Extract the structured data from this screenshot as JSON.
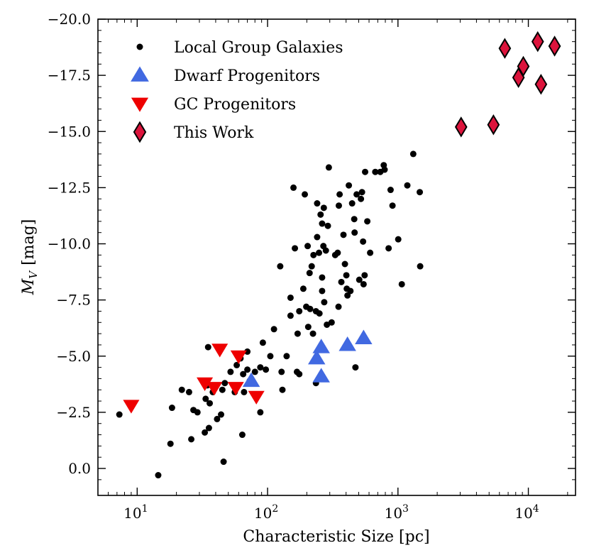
{
  "chart_data": {
    "type": "scatter",
    "xlabel": "Characteristic Size [pc]",
    "ylabel_main": "M",
    "ylabel_sub": "V",
    "ylabel_unit": "[mag]",
    "x_scale": "log",
    "y_inverted": true,
    "xlim": [
      5,
      23000
    ],
    "ylim": [
      1.2,
      -20.0
    ],
    "x_ticks": [
      {
        "value": 10,
        "base": "10",
        "exp": "1"
      },
      {
        "value": 100,
        "base": "10",
        "exp": "2"
      },
      {
        "value": 1000,
        "base": "10",
        "exp": "3"
      },
      {
        "value": 10000,
        "base": "10",
        "exp": "4"
      }
    ],
    "y_ticks": [
      {
        "value": 0.0,
        "label": "0.0"
      },
      {
        "value": -2.5,
        "label": "−2.5"
      },
      {
        "value": -5.0,
        "label": "−5.0"
      },
      {
        "value": -7.5,
        "label": "−7.5"
      },
      {
        "value": -10.0,
        "label": "−10.0"
      },
      {
        "value": -12.5,
        "label": "−12.5"
      },
      {
        "value": -15.0,
        "label": "−15.0"
      },
      {
        "value": -17.5,
        "label": "−17.5"
      },
      {
        "value": -20.0,
        "label": "−20.0"
      }
    ],
    "legend_position": "top-left",
    "grid": false,
    "series": [
      {
        "name": "Local Group Galaxies",
        "marker": "circle",
        "color": "#000000",
        "points": [
          [
            7.3,
            -2.4
          ],
          [
            14.5,
            0.3
          ],
          [
            18,
            -1.1
          ],
          [
            18.5,
            -2.7
          ],
          [
            22,
            -3.5
          ],
          [
            25,
            -3.4
          ],
          [
            26,
            -1.3
          ],
          [
            27,
            -2.6
          ],
          [
            29,
            -2.5
          ],
          [
            33,
            -1.6
          ],
          [
            33.5,
            -3.1
          ],
          [
            34.5,
            -3.7
          ],
          [
            35,
            -5.4
          ],
          [
            35.5,
            -1.8
          ],
          [
            36,
            -2.9
          ],
          [
            38,
            -3.4
          ],
          [
            41,
            -2.2
          ],
          [
            44,
            -2.4
          ],
          [
            45,
            -3.5
          ],
          [
            46,
            -0.3
          ],
          [
            47,
            -3.8
          ],
          [
            52,
            -4.3
          ],
          [
            56,
            -3.4
          ],
          [
            58,
            -4.6
          ],
          [
            62,
            -4.9
          ],
          [
            64,
            -1.5
          ],
          [
            65,
            -4.2
          ],
          [
            66,
            -3.4
          ],
          [
            70,
            -5.2
          ],
          [
            70,
            -4.4
          ],
          [
            73,
            -3.9
          ],
          [
            80,
            -4.3
          ],
          [
            88,
            -2.5
          ],
          [
            88,
            -4.5
          ],
          [
            92,
            -5.6
          ],
          [
            97,
            -4.4
          ],
          [
            105,
            -5.0
          ],
          [
            112,
            -6.2
          ],
          [
            125,
            -9.0
          ],
          [
            128,
            -4.3
          ],
          [
            130,
            -3.5
          ],
          [
            140,
            -5.0
          ],
          [
            150,
            -7.6
          ],
          [
            150,
            -6.8
          ],
          [
            158,
            -12.5
          ],
          [
            162,
            -9.8
          ],
          [
            168,
            -4.3
          ],
          [
            170,
            -6.0
          ],
          [
            175,
            -7.0
          ],
          [
            175,
            -4.2
          ],
          [
            188,
            -8.0
          ],
          [
            193,
            -12.2
          ],
          [
            198,
            -7.2
          ],
          [
            203,
            -9.9
          ],
          [
            205,
            -6.3
          ],
          [
            210,
            -8.7
          ],
          [
            212,
            -7.1
          ],
          [
            218,
            -9.0
          ],
          [
            223,
            -6.0
          ],
          [
            225,
            -9.5
          ],
          [
            235,
            -7.0
          ],
          [
            235,
            -3.8
          ],
          [
            240,
            -11.8
          ],
          [
            240,
            -10.3
          ],
          [
            248,
            -9.6
          ],
          [
            250,
            -6.9
          ],
          [
            255,
            -11.3
          ],
          [
            262,
            -8.5
          ],
          [
            262,
            -7.9
          ],
          [
            262,
            -10.9
          ],
          [
            268,
            -9.9
          ],
          [
            270,
            -11.6
          ],
          [
            272,
            -7.4
          ],
          [
            280,
            -9.7
          ],
          [
            285,
            -6.4
          ],
          [
            290,
            -10.8
          ],
          [
            295,
            -13.4
          ],
          [
            310,
            -6.5
          ],
          [
            330,
            -9.5
          ],
          [
            345,
            -9.6
          ],
          [
            350,
            -7.2
          ],
          [
            352,
            -11.7
          ],
          [
            357,
            -12.2
          ],
          [
            368,
            -8.3
          ],
          [
            382,
            -10.4
          ],
          [
            392,
            -9.1
          ],
          [
            402,
            -8.6
          ],
          [
            405,
            -8.0
          ],
          [
            410,
            -7.7
          ],
          [
            420,
            -12.6
          ],
          [
            432,
            -7.9
          ],
          [
            445,
            -11.8
          ],
          [
            462,
            -11.1
          ],
          [
            465,
            -10.5
          ],
          [
            472,
            -4.5
          ],
          [
            482,
            -12.2
          ],
          [
            505,
            -8.4
          ],
          [
            520,
            -12.0
          ],
          [
            530,
            -12.3
          ],
          [
            540,
            -10.1
          ],
          [
            545,
            -8.2
          ],
          [
            555,
            -8.6
          ],
          [
            560,
            -13.2
          ],
          [
            582,
            -11.0
          ],
          [
            612,
            -9.6
          ],
          [
            670,
            -13.2
          ],
          [
            732,
            -13.2
          ],
          [
            778,
            -13.5
          ],
          [
            790,
            -13.3
          ],
          [
            848,
            -9.8
          ],
          [
            878,
            -12.4
          ],
          [
            908,
            -11.7
          ],
          [
            1005,
            -10.2
          ],
          [
            1070,
            -8.2
          ],
          [
            1180,
            -12.6
          ],
          [
            1310,
            -14.0
          ],
          [
            1470,
            -12.3
          ],
          [
            1480,
            -9.0
          ]
        ]
      },
      {
        "name": "Dwarf Progenitors",
        "marker": "triangle-up",
        "color": "#4169e1",
        "points": [
          [
            75,
            -3.9
          ],
          [
            238,
            -4.9
          ],
          [
            258,
            -5.4
          ],
          [
            258,
            -4.1
          ],
          [
            410,
            -5.5
          ],
          [
            545,
            -5.8
          ]
        ]
      },
      {
        "name": "GC Progenitors",
        "marker": "triangle-down",
        "color": "#ee0000",
        "points": [
          [
            9,
            -2.8
          ],
          [
            33,
            -3.8
          ],
          [
            39,
            -3.6
          ],
          [
            43,
            -5.3
          ],
          [
            57,
            -3.6
          ],
          [
            60,
            -5.0
          ],
          [
            82,
            -3.2
          ]
        ]
      },
      {
        "name": "This Work",
        "marker": "diamond",
        "color": "#dc143c",
        "edge": "#000000",
        "points": [
          [
            3050,
            -15.2
          ],
          [
            5400,
            -15.3
          ],
          [
            6600,
            -18.7
          ],
          [
            8400,
            -17.4
          ],
          [
            9150,
            -17.9
          ],
          [
            11800,
            -19.0
          ],
          [
            12500,
            -17.1
          ],
          [
            15900,
            -18.8
          ]
        ]
      }
    ]
  }
}
